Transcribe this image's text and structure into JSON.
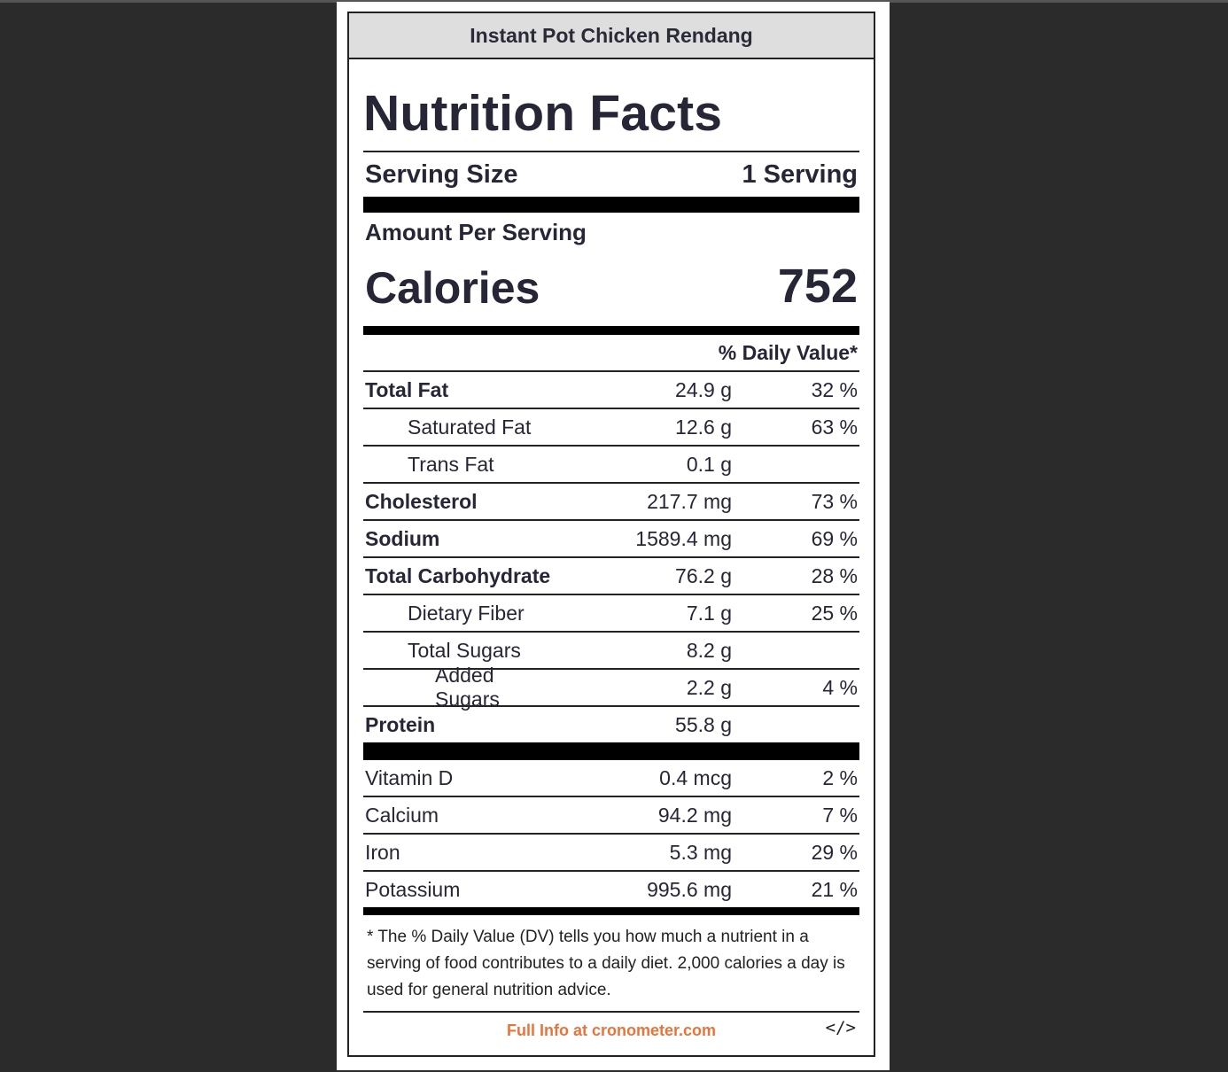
{
  "recipe_title": "Instant Pot Chicken Rendang",
  "heading": "Nutrition Facts",
  "serving": {
    "label": "Serving Size",
    "value": "1 Serving"
  },
  "amount_per_serving": "Amount Per Serving",
  "calories": {
    "label": "Calories",
    "value": "752"
  },
  "daily_value_header": "% Daily Value*",
  "nutrients": [
    {
      "name": "Total Fat",
      "amount": "24.9 g",
      "pct": "32 %"
    },
    {
      "name": "Saturated Fat",
      "amount": "12.6 g",
      "pct": "63 %"
    },
    {
      "name": "Trans Fat",
      "amount": "0.1 g",
      "pct": ""
    },
    {
      "name": "Cholesterol",
      "amount": "217.7 mg",
      "pct": "73 %"
    },
    {
      "name": "Sodium",
      "amount": "1589.4 mg",
      "pct": "69 %"
    },
    {
      "name": "Total Carbohydrate",
      "amount": "76.2 g",
      "pct": "28 %"
    },
    {
      "name": "Dietary Fiber",
      "amount": "7.1 g",
      "pct": "25 %"
    },
    {
      "name": "Total Sugars",
      "amount": "8.2 g",
      "pct": ""
    },
    {
      "name": "Added Sugars",
      "amount": "2.2 g",
      "pct": "4 %"
    },
    {
      "name": "Protein",
      "amount": "55.8 g",
      "pct": ""
    }
  ],
  "vitamins": [
    {
      "name": "Vitamin D",
      "amount": "0.4 mcg",
      "pct": "2 %"
    },
    {
      "name": "Calcium",
      "amount": "94.2 mg",
      "pct": "7 %"
    },
    {
      "name": "Iron",
      "amount": "5.3 mg",
      "pct": "29 %"
    },
    {
      "name": "Potassium",
      "amount": "995.6 mg",
      "pct": "21 %"
    }
  ],
  "footnote": "* The % Daily Value (DV) tells you how much a nutrient in a serving of food contributes to a daily diet. 2,000 calories a day is used for general nutrition advice.",
  "footer": {
    "link_text": "Full Info at cronometer.com",
    "embed_label": "</>"
  },
  "colors": {
    "link": "#e8743b",
    "header_bg": "#dedede",
    "page_bg": "#2b2b2b"
  }
}
